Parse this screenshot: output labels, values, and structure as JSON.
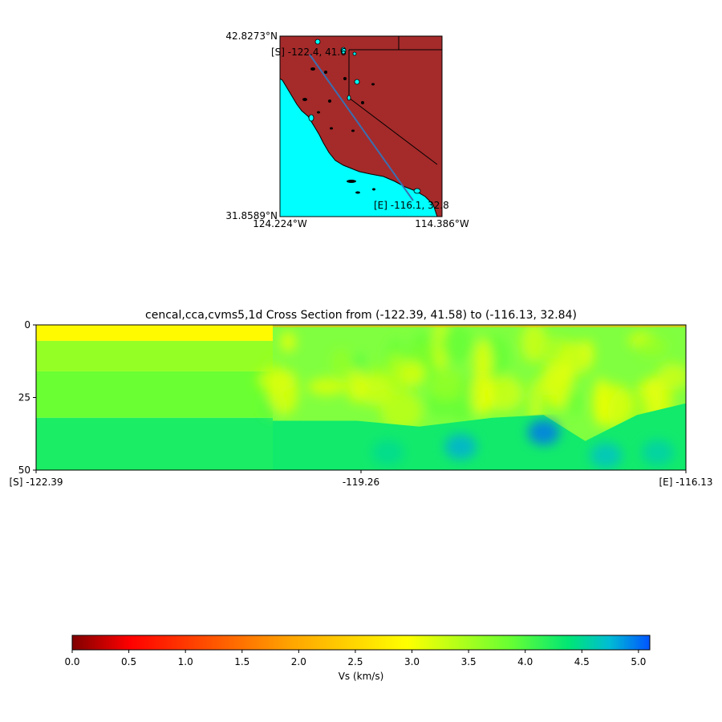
{
  "map": {
    "lat_top": "42.8273°N",
    "lat_bottom": "31.8589°N",
    "lon_left": "124.224°W",
    "lon_right": "114.386°W",
    "start_label": "[S] -122.4, 41.6",
    "end_label": "[E] -116.1, 32.8",
    "land_color": "#a52a2a",
    "water_color": "#00ffff",
    "path_color": "#3b6fb0"
  },
  "chart_data": [
    {
      "type": "heatmap",
      "title": "cencal,cca,cvms5,1d Cross Section from (-122.39, 41.58) to (-116.13, 32.84)",
      "xlabel": "",
      "ylabel": "",
      "x_ticks": [
        "[S] -122.39",
        "-119.26",
        "[E] -116.13"
      ],
      "x_tick_values": [
        -122.39,
        -119.26,
        -116.13
      ],
      "y_ticks": [
        "0",
        "25",
        "50"
      ],
      "y_tick_values": [
        0,
        25,
        50
      ],
      "xlim": [
        -122.39,
        -116.13
      ],
      "ylim": [
        50,
        0
      ],
      "layers_1d": [
        {
          "depth_top": 0,
          "depth_bottom": 5.5,
          "vs": 2.9
        },
        {
          "depth_top": 5.5,
          "depth_bottom": 16,
          "vs": 3.6
        },
        {
          "depth_top": 16,
          "depth_bottom": 32,
          "vs": 3.85
        },
        {
          "depth_top": 32,
          "depth_bottom": 50,
          "vs": 4.25
        }
      ],
      "model_boundary_x": -120.11,
      "moho_depth_profile": [
        {
          "x": -120.11,
          "depth": 33
        },
        {
          "x": -119.3,
          "depth": 33
        },
        {
          "x": -118.7,
          "depth": 35
        },
        {
          "x": -118.0,
          "depth": 32
        },
        {
          "x": -117.5,
          "depth": 31
        },
        {
          "x": -117.1,
          "depth": 40
        },
        {
          "x": -116.6,
          "depth": 31
        },
        {
          "x": -116.13,
          "depth": 27
        }
      ]
    },
    {
      "type": "colorbar",
      "label": "Vs (km/s)",
      "range": [
        0.0,
        5.1
      ],
      "ticks": [
        "0.0",
        "0.5",
        "1.0",
        "1.5",
        "2.0",
        "2.5",
        "3.0",
        "3.5",
        "4.0",
        "4.5",
        "5.0"
      ],
      "tick_values": [
        0.0,
        0.5,
        1.0,
        1.5,
        2.0,
        2.5,
        3.0,
        3.5,
        4.0,
        4.5,
        5.0
      ],
      "colormap": "jet_r"
    }
  ]
}
